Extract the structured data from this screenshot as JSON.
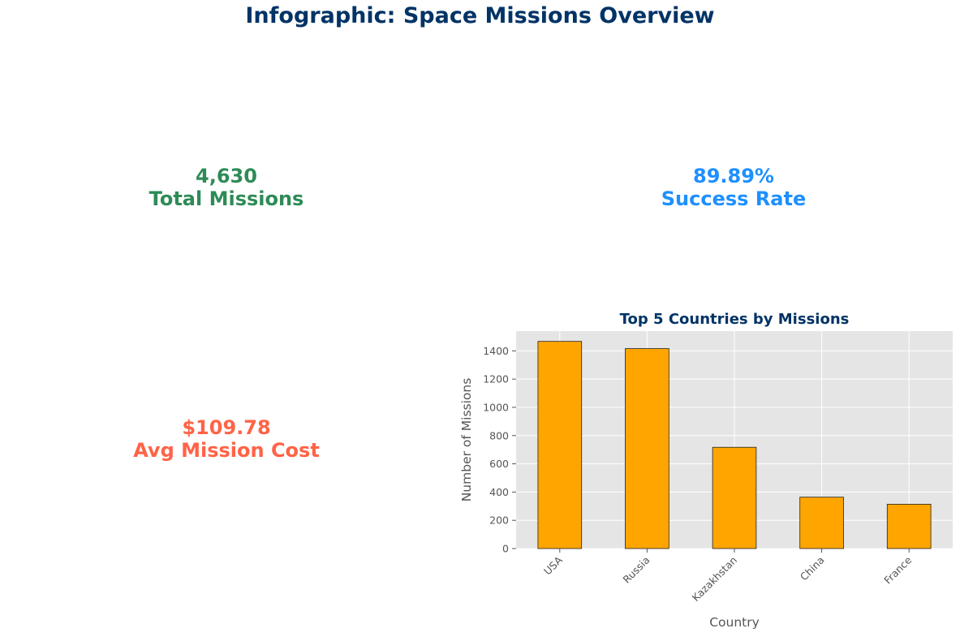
{
  "title": "Infographic: Space Missions Overview",
  "kpis": {
    "total_missions": {
      "value": "4,630",
      "label": "Total Missions",
      "color": "#2e8b57"
    },
    "success_rate": {
      "value": "89.89%",
      "label": "Success Rate",
      "color": "#1e90ff"
    },
    "avg_cost": {
      "value": "$109.78",
      "label": "Avg Mission Cost",
      "color": "#ff6347"
    }
  },
  "colors": {
    "bar": "#ffa500",
    "plot_bg": "#e5e5e5",
    "title": "#003366"
  },
  "chart_data": {
    "type": "bar",
    "title": "Top 5 Countries by Missions",
    "xlabel": "Country",
    "ylabel": "Number of Missions",
    "categories": [
      "USA",
      "Russia",
      "Kazakhstan",
      "China",
      "France"
    ],
    "values": [
      1467,
      1416,
      717,
      364,
      314
    ],
    "ylim": [
      0,
      1540
    ],
    "yticks": [
      0,
      200,
      400,
      600,
      800,
      1000,
      1200,
      1400
    ],
    "grid": true,
    "legend": "none"
  }
}
